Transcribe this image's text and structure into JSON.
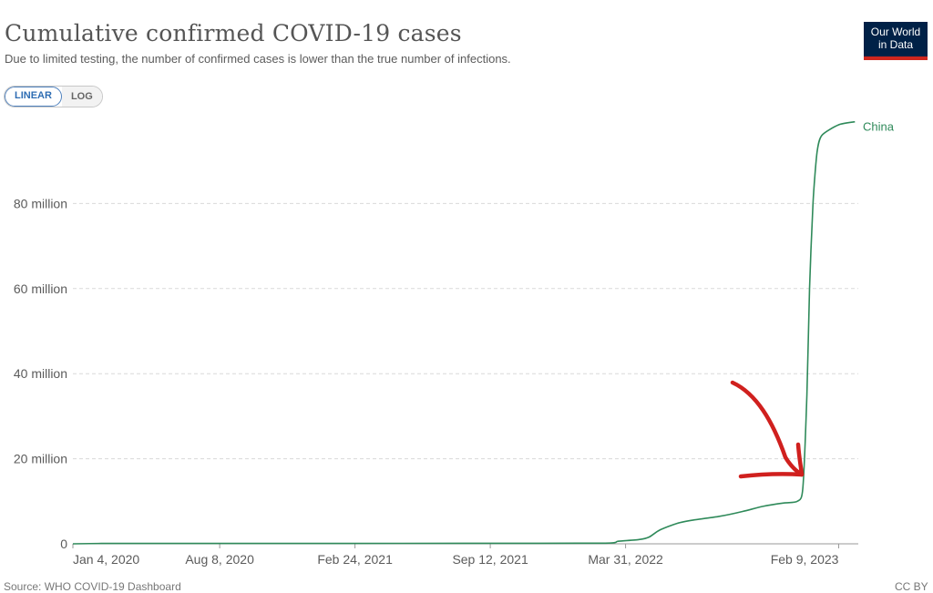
{
  "header": {
    "title": "Cumulative confirmed COVID-19 cases",
    "subtitle": "Due to limited testing, the number of confirmed cases is lower than the true number of infections.",
    "logo_line1": "Our World",
    "logo_line2": "in Data"
  },
  "scale_toggle": {
    "options": [
      "LINEAR",
      "LOG"
    ],
    "selected": "LINEAR"
  },
  "footer": {
    "source": "Source: WHO COVID-19 Dashboard",
    "license": "CC BY"
  },
  "colors": {
    "series": "#2f8a5a",
    "annotation_arrow": "#d0201e",
    "grid": "#d9d9d9",
    "axis_text": "#5b5b5b"
  },
  "chart_data": {
    "type": "line",
    "title": "Cumulative confirmed COVID-19 cases",
    "x_type": "date",
    "xlim": [
      "2020-01-04",
      "2023-03-10"
    ],
    "x_ticks": [
      "Jan 4, 2020",
      "Aug 8, 2020",
      "Feb 24, 2021",
      "Sep 12, 2021",
      "Mar 31, 2022",
      "Feb 9, 2023"
    ],
    "x_tick_dates": [
      "2020-01-04",
      "2020-08-08",
      "2021-02-24",
      "2021-09-12",
      "2022-03-31",
      "2023-02-09"
    ],
    "ylim": [
      0,
      100000000
    ],
    "y_ticks": [
      0,
      20000000,
      40000000,
      60000000,
      80000000
    ],
    "y_tick_labels": [
      "0",
      "20 million",
      "40 million",
      "60 million",
      "80 million"
    ],
    "grid": "horizontal-dashed",
    "series": [
      {
        "name": "China",
        "x": [
          "2020-01-04",
          "2020-02-15",
          "2020-06-01",
          "2021-01-01",
          "2021-09-12",
          "2022-03-01",
          "2022-03-20",
          "2022-04-20",
          "2022-05-05",
          "2022-05-20",
          "2022-06-15",
          "2022-07-10",
          "2022-08-15",
          "2022-09-20",
          "2022-10-20",
          "2022-11-20",
          "2022-12-10",
          "2022-12-18",
          "2022-12-24",
          "2022-12-28",
          "2023-01-02",
          "2023-01-08",
          "2023-01-15",
          "2023-02-09",
          "2023-03-05"
        ],
        "y": [
          0,
          80000,
          85000,
          96000,
          120000,
          150000,
          600000,
          1000000,
          1600000,
          3200000,
          4800000,
          5600000,
          6400000,
          7600000,
          8800000,
          9600000,
          10000000,
          13000000,
          35000000,
          60000000,
          80000000,
          92000000,
          96000000,
          98500000,
          99200000
        ]
      }
    ],
    "series_label": "China"
  }
}
